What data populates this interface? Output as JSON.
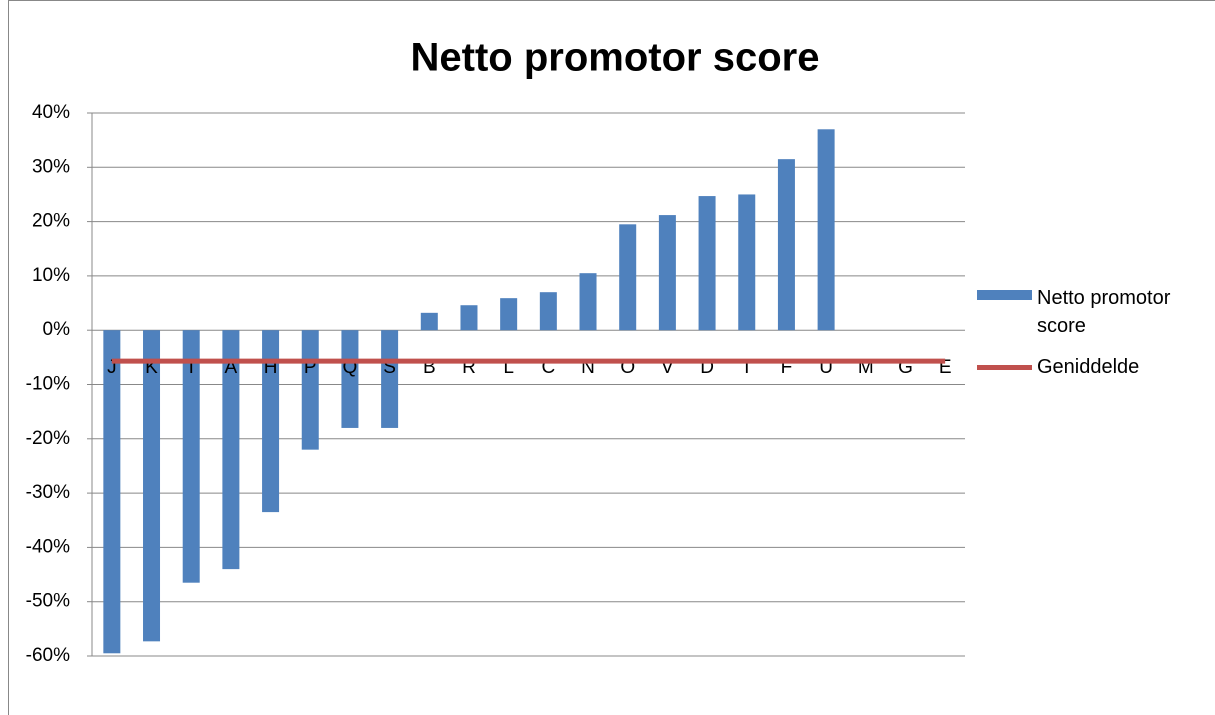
{
  "chart_data": {
    "type": "bar",
    "title": "Netto promotor score",
    "categories": [
      "J",
      "K",
      "I",
      "A",
      "H",
      "P",
      "Q",
      "S",
      "B",
      "R",
      "L",
      "C",
      "N",
      "O",
      "V",
      "D",
      "T",
      "F",
      "U",
      "M",
      "G",
      "E"
    ],
    "series": [
      {
        "name": "Netto promotor score",
        "type": "bar",
        "color": "#4f81bd",
        "values": [
          -59.5,
          -57.3,
          -46.5,
          -44,
          -33.5,
          -22,
          -18,
          -18,
          3.2,
          4.6,
          5.9,
          7,
          10.5,
          19.5,
          21.2,
          24.7,
          25,
          31.5,
          37,
          null,
          null,
          null
        ]
      },
      {
        "name": "Geniddelde",
        "type": "line",
        "color": "#c0504d",
        "values": [
          -5.7,
          -5.7,
          -5.7,
          -5.7,
          -5.7,
          -5.7,
          -5.7,
          -5.7,
          -5.7,
          -5.7,
          -5.7,
          -5.7,
          -5.7,
          -5.7,
          -5.7,
          -5.7,
          -5.7,
          -5.7,
          -5.7,
          -5.7,
          -5.7,
          -5.7
        ]
      }
    ],
    "ylim": [
      -60,
      40
    ],
    "yticks": [
      {
        "value": -60,
        "label": "-60%"
      },
      {
        "value": -50,
        "label": "-50%"
      },
      {
        "value": -40,
        "label": "-40%"
      },
      {
        "value": -30,
        "label": "-30%"
      },
      {
        "value": -20,
        "label": "-20%"
      },
      {
        "value": -10,
        "label": "-10%"
      },
      {
        "value": 0,
        "label": "0%"
      },
      {
        "value": 10,
        "label": "10%"
      },
      {
        "value": 20,
        "label": "20%"
      },
      {
        "value": 30,
        "label": "30%"
      },
      {
        "value": 40,
        "label": "40%"
      }
    ],
    "grid": true,
    "legend": "right"
  }
}
